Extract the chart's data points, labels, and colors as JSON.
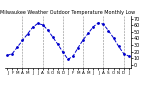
{
  "title": "Milwaukee Weather Outdoor Temperature Monthly Low",
  "line_color": "#0000cc",
  "bg_color": "#ffffff",
  "grid_color": "#888888",
  "months": [
    "J",
    "F",
    "M",
    "A",
    "M",
    "J",
    "J",
    "A",
    "S",
    "O",
    "N",
    "D",
    "J",
    "F",
    "M",
    "A",
    "M",
    "J",
    "J",
    "A",
    "S",
    "O",
    "N",
    "D",
    "J"
  ],
  "values": [
    14,
    17,
    27,
    37,
    47,
    57,
    63,
    61,
    53,
    42,
    31,
    19,
    8,
    13,
    26,
    38,
    48,
    58,
    64,
    62,
    52,
    41,
    28,
    17,
    13
  ],
  "ylim": [
    -5,
    75
  ],
  "ytick_vals": [
    0,
    10,
    20,
    30,
    40,
    50,
    60,
    70
  ],
  "ytick_labels": [
    "0",
    "10",
    "20",
    "30",
    "40",
    "50",
    "60",
    "70"
  ],
  "grid_x": [
    3,
    7,
    11,
    15,
    19,
    23
  ],
  "linestyle": "--",
  "linewidth": 0.7,
  "markersize": 2.0,
  "title_fontsize": 3.5,
  "tick_fontsize": 3.5,
  "xtick_fontsize": 3.0
}
